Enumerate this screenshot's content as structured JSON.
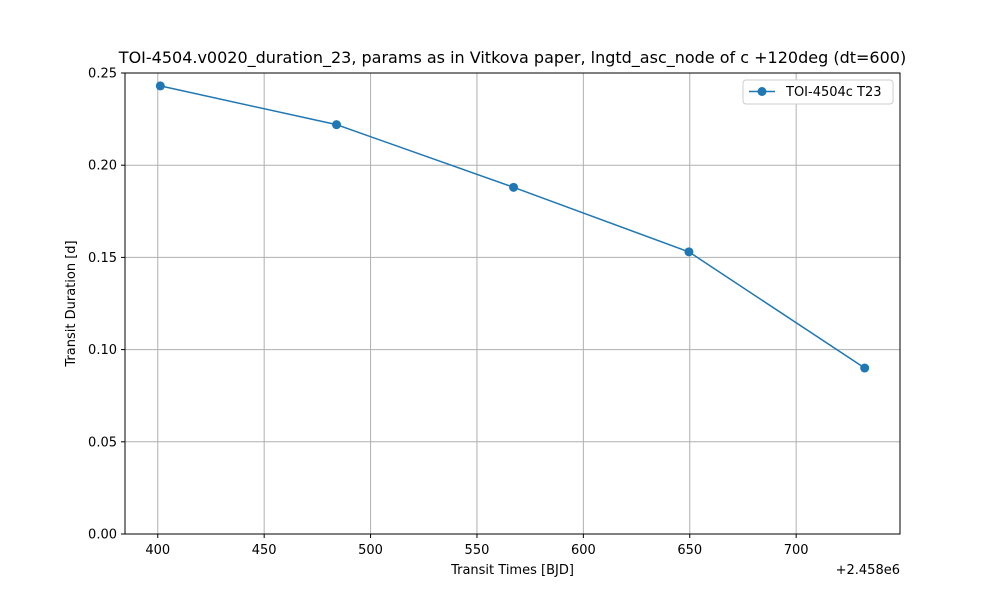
{
  "chart_data": {
    "type": "line",
    "title": "TOI-4504.v0020_duration_23, params as in Vitkova paper, lngtd_asc_node of c +120deg (dt=600)",
    "xlabel": "Transit Times [BJD]",
    "ylabel": "Transit Duration [d]",
    "x_offset_label": "+2.458e6",
    "xlim": [
      384.6,
      748.8
    ],
    "ylim": [
      0,
      0.25
    ],
    "x_ticks": [
      400,
      450,
      500,
      550,
      600,
      650,
      700
    ],
    "y_ticks": [
      0.0,
      0.05,
      0.1,
      0.15,
      0.2,
      0.25
    ],
    "x_tick_labels": [
      "400",
      "450",
      "500",
      "550",
      "600",
      "650",
      "700"
    ],
    "y_tick_labels": [
      "0.00",
      "0.05",
      "0.10",
      "0.15",
      "0.20",
      "0.25"
    ],
    "grid": true,
    "legend_position": "top-right",
    "series": [
      {
        "name": "TOI-4504c T23",
        "color": "#1f77b4",
        "marker": "circle",
        "x": [
          401.2,
          484.0,
          567.2,
          649.6,
          732.2
        ],
        "y": [
          0.243,
          0.222,
          0.188,
          0.153,
          0.09
        ]
      }
    ]
  }
}
